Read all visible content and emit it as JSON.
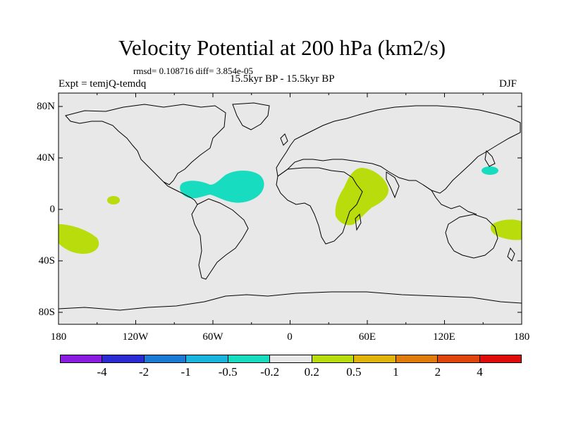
{
  "title": "Velocity Potential at 200 hPa (km2/s)",
  "stats": "rmsd= 0.108716 diff= 3.854e-05",
  "left_label": "Expt = temjQ-temdq",
  "center_label": "15.5kyr BP - 15.5kyr BP",
  "right_label": "DJF",
  "lat_ticks": [
    "80N",
    "40N",
    "0",
    "40S",
    "80S"
  ],
  "lon_ticks": [
    "180",
    "120W",
    "60W",
    "0",
    "60E",
    "120E",
    "180"
  ],
  "colorbar": {
    "colors": [
      "#8a1be0",
      "#2b2bd6",
      "#1a7bd6",
      "#19b5de",
      "#18dcc0",
      "#e8e8e8",
      "#b8dc0c",
      "#e0b40a",
      "#e07c0c",
      "#e0460c",
      "#e00c0c"
    ],
    "labels": [
      "-4",
      "-2",
      "-1",
      "-0.5",
      "-0.2",
      "0.2",
      "0.5",
      "1",
      "2",
      "4"
    ]
  },
  "map": {
    "ocean_color": "#e8e8e8",
    "positive_color": "#b8dc0c",
    "negative_color": "#18dcc0"
  }
}
